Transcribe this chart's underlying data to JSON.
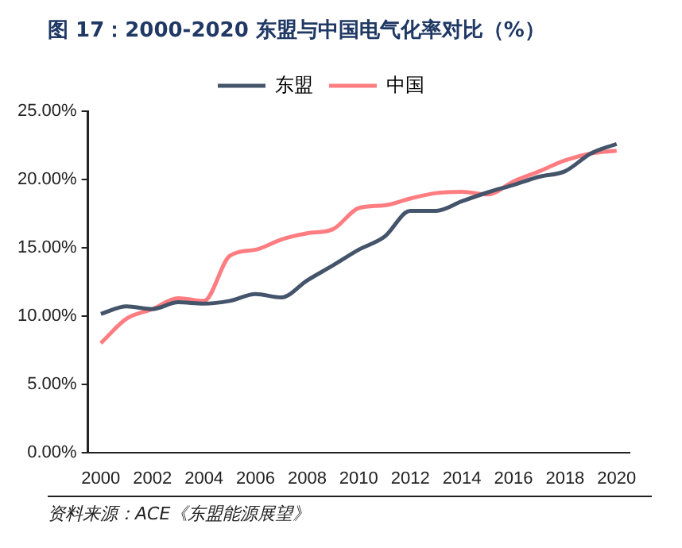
{
  "chart_data": {
    "type": "line",
    "title": "图 17：2000-2020 东盟与中国电气化率对比（%）",
    "categories": [
      "2000",
      null,
      "2002",
      null,
      "2004",
      null,
      "2006",
      null,
      "2008",
      null,
      "2010",
      null,
      "2012",
      null,
      "2014",
      null,
      "2016",
      null,
      "2018",
      null,
      "2020"
    ],
    "series": [
      {
        "name": "东盟",
        "color": "#44546a",
        "values": [
          10.15,
          10.7,
          10.5,
          11.0,
          10.9,
          11.1,
          11.6,
          11.35,
          12.6,
          13.7,
          14.85,
          15.8,
          17.7,
          17.7,
          18.4,
          19.05,
          19.6,
          20.2,
          20.6,
          21.9,
          22.6
        ]
      },
      {
        "name": "中国",
        "color": "#ff7c80",
        "values": [
          8.0,
          9.8,
          10.5,
          11.3,
          11.1,
          14.4,
          14.85,
          15.6,
          16.05,
          16.35,
          17.9,
          18.1,
          18.6,
          19.0,
          19.1,
          18.9,
          19.85,
          20.6,
          21.4,
          21.9,
          22.1
        ]
      }
    ],
    "ylim": [
      0,
      25
    ],
    "yticks": [
      {
        "value": 0,
        "label": "0.00%"
      },
      {
        "value": 5,
        "label": "5.00%"
      },
      {
        "value": 10,
        "label": "10.00%"
      },
      {
        "value": 15,
        "label": "15.00%"
      },
      {
        "value": 20,
        "label": "20.00%"
      },
      {
        "value": 25,
        "label": "25.00%"
      }
    ],
    "grid": false,
    "legend": "top",
    "marker": "none",
    "line_style": "solid",
    "annotations": [
      "资料来源：ACE《东盟能源展望》"
    ]
  }
}
